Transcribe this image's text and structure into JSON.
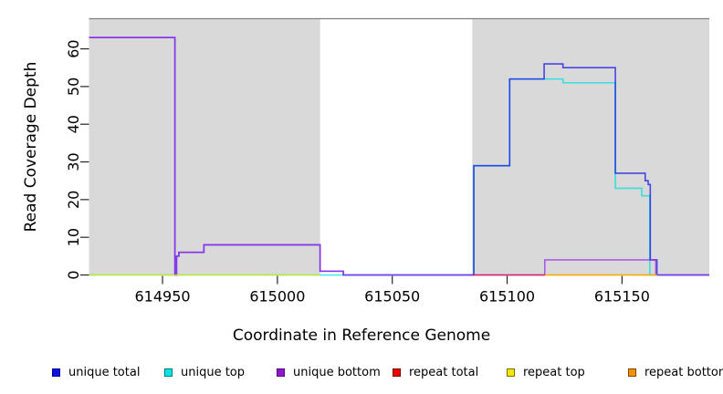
{
  "chart_data": {
    "type": "line",
    "subtype": "step-function-read-coverage",
    "title": "",
    "xlabel": "Coordinate in Reference Genome",
    "ylabel": "Read Coverage Depth",
    "xlim": [
      614918,
      615188
    ],
    "ylim": [
      0,
      68
    ],
    "x_ticks": [
      614950,
      615000,
      615050,
      615100,
      615150
    ],
    "y_ticks": [
      0,
      10,
      20,
      30,
      40,
      50,
      60
    ],
    "grid": false,
    "plot_background": "#ffffff",
    "top_border_color": "#7f7f7f",
    "shaded_regions": {
      "color": "#d9d9d9",
      "regions": [
        [
          614918,
          615018.6
        ],
        [
          615084.8,
          615188
        ]
      ]
    },
    "line_opacity": 0.75,
    "draw_order": [
      "unique top",
      "unique total",
      "unique bottom",
      "repeat total",
      "repeat top",
      "repeat bottom"
    ],
    "series": [
      {
        "name": "unique total",
        "color": "#1414e8",
        "segments": [
          [
            [
              614918,
              63
            ],
            [
              614955.4,
              0
            ],
            [
              614956.1,
              5
            ],
            [
              614957.1,
              6
            ],
            [
              614968,
              8
            ],
            [
              615018.6,
              1
            ],
            [
              615028.7,
              0
            ],
            [
              615085.5,
              29
            ],
            [
              615101.1,
              52
            ],
            [
              615116.1,
              56
            ],
            [
              615124.3,
              55
            ],
            [
              615147.1,
              27
            ],
            [
              615160.1,
              25
            ],
            [
              615161.4,
              24
            ],
            [
              615162.3,
              4
            ],
            [
              615165.2,
              0
            ],
            [
              615188,
              0
            ]
          ]
        ]
      },
      {
        "name": "unique top",
        "color": "#00e0e0",
        "segments": [
          [
            [
              614918,
              0
            ],
            [
              615085.5,
              29
            ],
            [
              615101.1,
              52
            ],
            [
              615124.3,
              51
            ],
            [
              615147.1,
              23
            ],
            [
              615158.6,
              21
            ],
            [
              615162.1,
              0
            ],
            [
              615188,
              0
            ]
          ]
        ]
      },
      {
        "name": "unique bottom",
        "color": "#9d2fe8",
        "segments": [
          [
            [
              614918,
              63
            ],
            [
              614955.4,
              0
            ],
            [
              614956.1,
              5
            ],
            [
              614957.1,
              6
            ],
            [
              614968,
              8
            ],
            [
              615018.6,
              1
            ],
            [
              615028.7,
              0
            ],
            [
              615116.4,
              4
            ],
            [
              615164.7,
              0
            ],
            [
              615188,
              0
            ]
          ]
        ]
      },
      {
        "name": "repeat total",
        "color": "#dc143c",
        "segments": [
          [
            [
              615084.8,
              0
            ],
            [
              615116.5,
              0
            ]
          ]
        ]
      },
      {
        "name": "repeat top",
        "color": "#f0e800",
        "segments": [
          [
            [
              614918,
              0
            ],
            [
              615018.6,
              0
            ]
          ],
          [
            [
              615116.5,
              0
            ],
            [
              615165.2,
              0
            ]
          ]
        ]
      },
      {
        "name": "repeat bottom",
        "color": "#ff9000",
        "segments": [
          [
            [
              615116.5,
              0
            ],
            [
              615165.2,
              0
            ]
          ]
        ]
      }
    ],
    "legend": {
      "position": "bottom",
      "items": [
        {
          "label": "unique total",
          "fill": "#0d0df0",
          "border": "#00007a"
        },
        {
          "label": "unique top",
          "fill": "#00e6e6",
          "border": "#007a7a"
        },
        {
          "label": "unique bottom",
          "fill": "#9414d3",
          "border": "#4b0d7a"
        },
        {
          "label": "repeat total",
          "fill": "#f00000",
          "border": "#7a0000"
        },
        {
          "label": "repeat top",
          "fill": "#f5e800",
          "border": "#7a7000"
        },
        {
          "label": "repeat bottom",
          "fill": "#ff9000",
          "border": "#7a4700"
        }
      ]
    }
  }
}
